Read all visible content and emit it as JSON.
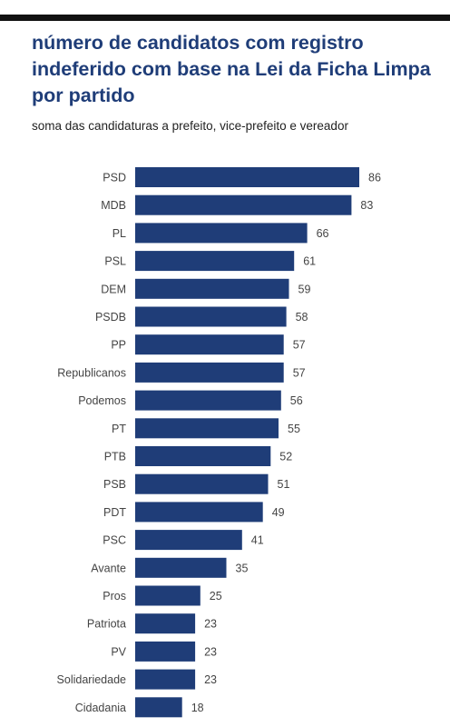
{
  "chart_data": {
    "type": "bar",
    "orientation": "horizontal",
    "title": "número de candidatos com registro indeferido com base na Lei da Ficha Limpa por partido",
    "subtitle": "soma das candidaturas a prefeito, vice-prefeito e vereador",
    "categories": [
      "PSD",
      "MDB",
      "PL",
      "PSL",
      "DEM",
      "PSDB",
      "PP",
      "Republicanos",
      "Podemos",
      "PT",
      "PTB",
      "PSB",
      "PDT",
      "PSC",
      "Avante",
      "Pros",
      "Patriota",
      "PV",
      "Solidariedade",
      "Cidadania"
    ],
    "values": [
      86,
      83,
      66,
      61,
      59,
      58,
      57,
      57,
      56,
      55,
      52,
      51,
      49,
      41,
      35,
      25,
      23,
      23,
      23,
      18
    ],
    "xlim": [
      0,
      86
    ],
    "grid": false,
    "legend": "none",
    "bar_color": "#1f3d78"
  }
}
